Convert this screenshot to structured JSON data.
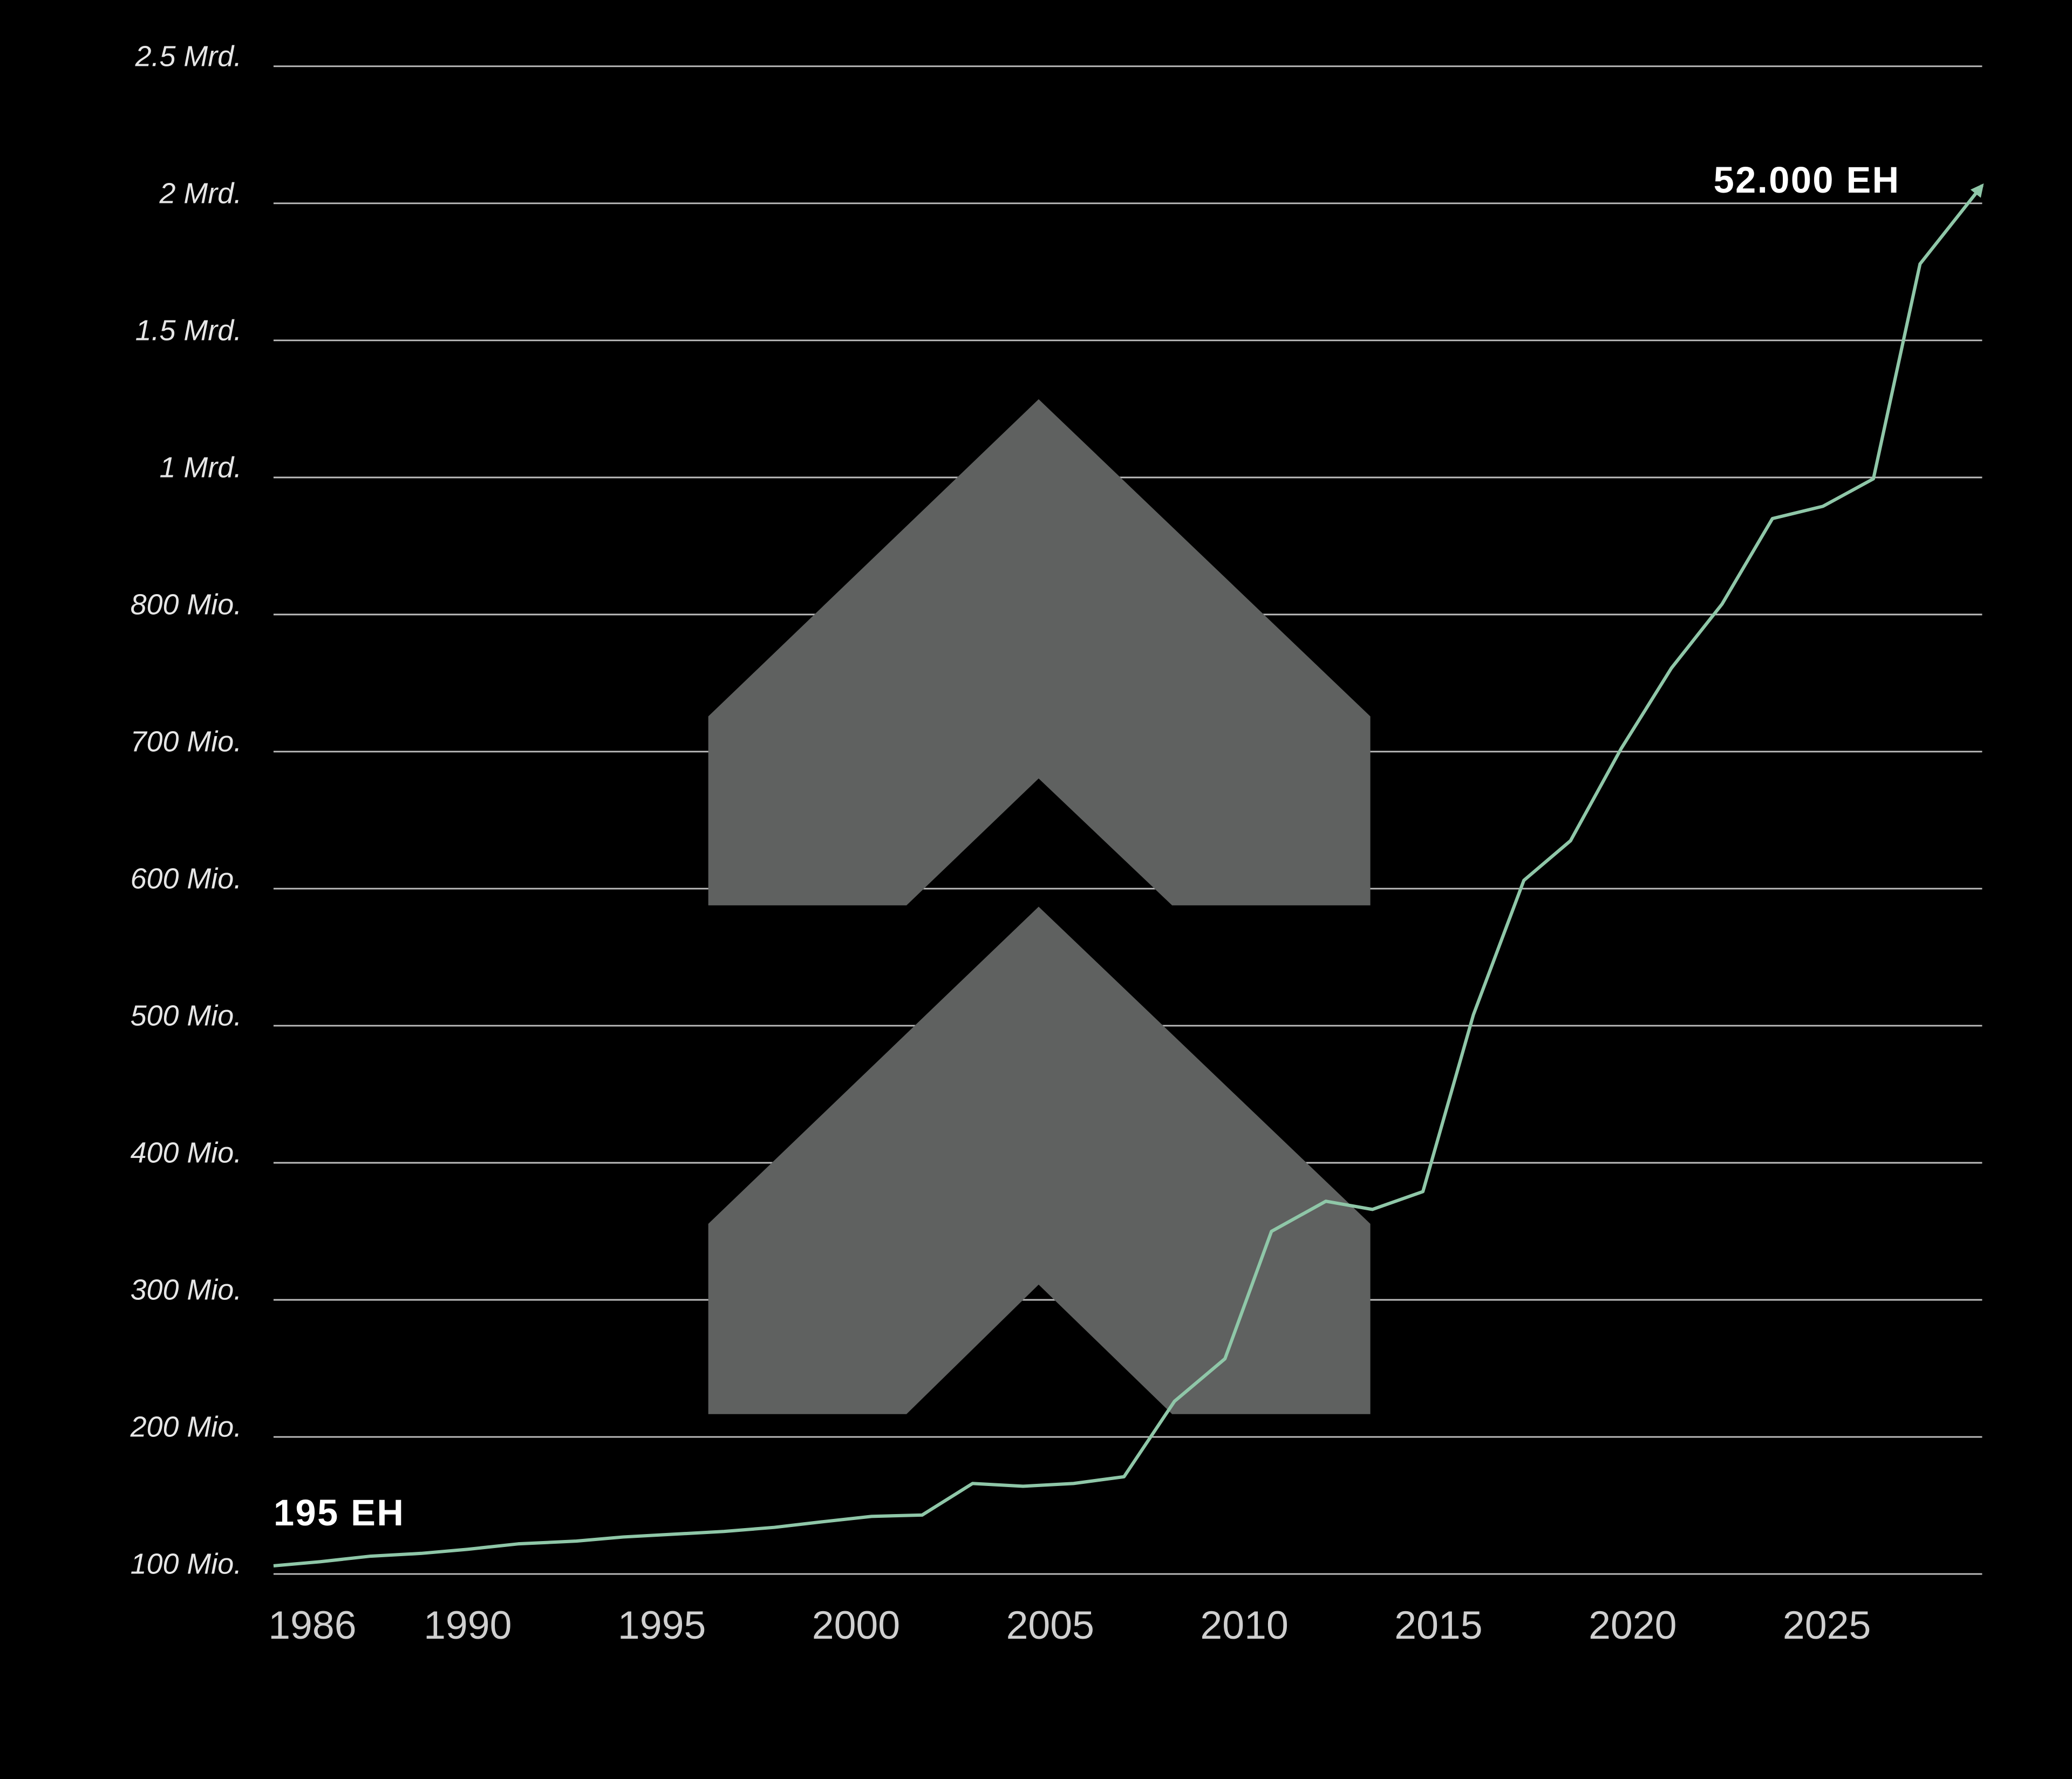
{
  "chart_data": {
    "type": "line",
    "x": [
      1985.0,
      1986.2,
      1987.5,
      1988.8,
      1990.0,
      1991.3,
      1992.8,
      1994.0,
      1995.3,
      1996.6,
      1997.9,
      1999.1,
      2000.4,
      2001.7,
      2003.0,
      2004.3,
      2005.6,
      2006.9,
      2008.2,
      2009.5,
      2010.7,
      2012.1,
      2013.3,
      2014.6,
      2015.9,
      2017.2,
      2018.4,
      2019.7,
      2021.0,
      2022.3,
      2023.6,
      2024.9,
      2026.2,
      2027.4,
      2029.0
    ],
    "values": [
      106,
      109,
      113,
      115,
      118,
      122,
      124,
      127,
      129,
      131,
      134,
      138,
      142,
      143,
      166,
      164,
      166,
      171,
      226,
      257,
      350,
      372,
      366,
      379,
      508,
      606,
      635,
      702,
      761,
      815,
      940,
      958,
      998,
      1779,
      2065
    ],
    "color": "#8fc7a8",
    "xlim": [
      1985,
      2029
    ],
    "xticks": [
      1986,
      1990,
      1995,
      2000,
      2005,
      2010,
      2015,
      2020,
      2025
    ],
    "ylim": [
      100,
      2500
    ],
    "yticks": [
      {
        "value": 100,
        "label": "100 Mio."
      },
      {
        "value": 200,
        "label": "200 Mio."
      },
      {
        "value": 300,
        "label": "300 Mio."
      },
      {
        "value": 400,
        "label": "400 Mio."
      },
      {
        "value": 500,
        "label": "500 Mio."
      },
      {
        "value": 600,
        "label": "600 Mio."
      },
      {
        "value": 700,
        "label": "700 Mio."
      },
      {
        "value": 800,
        "label": "800 Mio."
      },
      {
        "value": 1000,
        "label": "1 Mrd."
      },
      {
        "value": 1500,
        "label": "1.5 Mrd."
      },
      {
        "value": 2000,
        "label": "2 Mrd."
      },
      {
        "value": 2500,
        "label": "2.5 Mrd."
      }
    ],
    "grid": true,
    "annotations": [
      {
        "text": "195 EH"
      },
      {
        "text": "52.000 EH"
      }
    ]
  }
}
